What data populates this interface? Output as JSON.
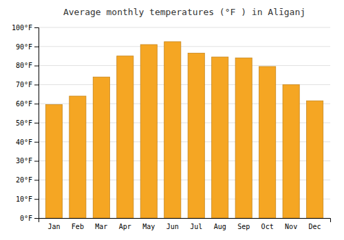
{
  "chart_data": {
    "type": "bar",
    "title": "Average monthly temperatures (°F ) in Alīganj",
    "categories": [
      "Jan",
      "Feb",
      "Mar",
      "Apr",
      "May",
      "Jun",
      "Jul",
      "Aug",
      "Sep",
      "Oct",
      "Nov",
      "Dec"
    ],
    "values": [
      59.5,
      64,
      74,
      85,
      91,
      92.5,
      86.5,
      84.5,
      84,
      79.5,
      70,
      61.5
    ],
    "color": "#F5A623",
    "ylim": [
      0,
      100
    ],
    "yticks": [
      {
        "value": 0,
        "label": "0°F"
      },
      {
        "value": 10,
        "label": "10°F"
      },
      {
        "value": 20,
        "label": "20°F"
      },
      {
        "value": 30,
        "label": "30°F"
      },
      {
        "value": 40,
        "label": "40°F"
      },
      {
        "value": 50,
        "label": "50°F"
      },
      {
        "value": 60,
        "label": "60°F"
      },
      {
        "value": 70,
        "label": "70°F"
      },
      {
        "value": 80,
        "label": "80°F"
      },
      {
        "value": 90,
        "label": "90°F"
      },
      {
        "value": 100,
        "label": "100°F"
      }
    ],
    "grid": true
  }
}
